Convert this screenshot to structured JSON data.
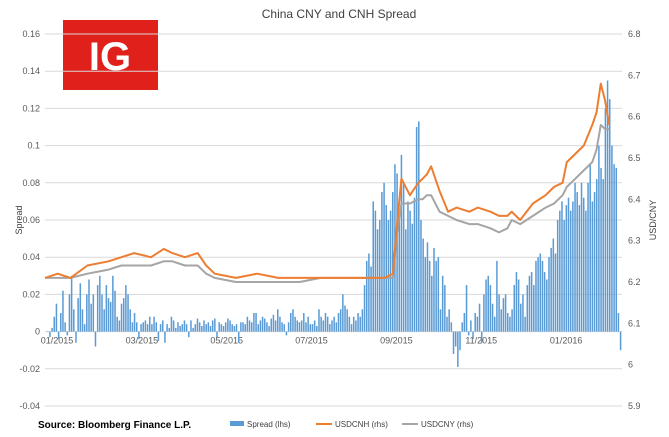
{
  "chart_data": {
    "type": "bar+line",
    "title": "China CNY and CNH Spread",
    "ylabel_left": "Spread",
    "ylabel_right": "USD/CNY",
    "ylim_left": [
      -0.04,
      0.16
    ],
    "ylim_right": [
      5.9,
      6.8
    ],
    "yticks_left": [
      "0.16",
      "0.14",
      "0.12",
      "0.1",
      "0.08",
      "0.06",
      "0.04",
      "0.02",
      "0",
      "-0.02",
      "-0.04"
    ],
    "yticks_right": [
      "6.8",
      "6.7",
      "6.6",
      "6.5",
      "6.4",
      "6.3",
      "6.2",
      "6.1",
      "6",
      "5.9"
    ],
    "xticks": [
      "01/2015",
      "03/2015",
      "05/2015",
      "07/2015",
      "09/2015",
      "11/2015",
      "01/2016"
    ],
    "legend": [
      "Spread (lhs)",
      "USDCNH (rhs)",
      "USDCNY (rhs)"
    ],
    "colors": {
      "spread": "#5b9bd5",
      "usdcnh": "#ed7d31",
      "usdcny": "#a5a5a5",
      "logo": "#e0201b"
    },
    "series": [
      {
        "name": "USDCNH (rhs)",
        "axis": "right",
        "points": [
          [
            0,
            6.21
          ],
          [
            0.3,
            6.22
          ],
          [
            0.6,
            6.21
          ],
          [
            1,
            6.24
          ],
          [
            1.5,
            6.25
          ],
          [
            1.8,
            6.26
          ],
          [
            2.1,
            6.27
          ],
          [
            2.5,
            6.26
          ],
          [
            2.8,
            6.28
          ],
          [
            3,
            6.27
          ],
          [
            3.3,
            6.26
          ],
          [
            3.6,
            6.27
          ],
          [
            3.8,
            6.24
          ],
          [
            4,
            6.22
          ],
          [
            4.5,
            6.21
          ],
          [
            5,
            6.22
          ],
          [
            5.5,
            6.21
          ],
          [
            6,
            6.21
          ],
          [
            6.5,
            6.21
          ],
          [
            7,
            6.21
          ],
          [
            7.5,
            6.21
          ],
          [
            8,
            6.21
          ],
          [
            8.2,
            6.22
          ],
          [
            8.3,
            6.34
          ],
          [
            8.4,
            6.45
          ],
          [
            8.6,
            6.41
          ],
          [
            8.8,
            6.44
          ],
          [
            8.9,
            6.45
          ],
          [
            9,
            6.46
          ],
          [
            9.1,
            6.48
          ],
          [
            9.3,
            6.42
          ],
          [
            9.5,
            6.37
          ],
          [
            9.7,
            6.38
          ],
          [
            10,
            6.37
          ],
          [
            10.2,
            6.38
          ],
          [
            10.5,
            6.37
          ],
          [
            10.7,
            6.36
          ],
          [
            10.9,
            6.36
          ],
          [
            11,
            6.37
          ],
          [
            11.2,
            6.35
          ],
          [
            11.5,
            6.39
          ],
          [
            11.8,
            6.41
          ],
          [
            12,
            6.43
          ],
          [
            12.2,
            6.44
          ],
          [
            12.3,
            6.49
          ],
          [
            12.5,
            6.51
          ],
          [
            12.7,
            6.53
          ],
          [
            12.9,
            6.58
          ],
          [
            13,
            6.61
          ],
          [
            13.1,
            6.68
          ],
          [
            13.2,
            6.64
          ],
          [
            13.3,
            6.58
          ]
        ]
      },
      {
        "name": "USDCNY (rhs)",
        "axis": "right",
        "points": [
          [
            0,
            6.21
          ],
          [
            0.3,
            6.21
          ],
          [
            0.6,
            6.21
          ],
          [
            1,
            6.22
          ],
          [
            1.5,
            6.23
          ],
          [
            1.8,
            6.24
          ],
          [
            2.1,
            6.24
          ],
          [
            2.5,
            6.24
          ],
          [
            2.8,
            6.25
          ],
          [
            3,
            6.25
          ],
          [
            3.3,
            6.24
          ],
          [
            3.6,
            6.24
          ],
          [
            3.8,
            6.22
          ],
          [
            4,
            6.21
          ],
          [
            4.5,
            6.2
          ],
          [
            5,
            6.2
          ],
          [
            5.5,
            6.2
          ],
          [
            6,
            6.2
          ],
          [
            6.5,
            6.21
          ],
          [
            7,
            6.21
          ],
          [
            7.5,
            6.21
          ],
          [
            8,
            6.21
          ],
          [
            8.2,
            6.21
          ],
          [
            8.3,
            6.32
          ],
          [
            8.4,
            6.39
          ],
          [
            8.6,
            6.39
          ],
          [
            8.8,
            6.4
          ],
          [
            8.9,
            6.4
          ],
          [
            9,
            6.41
          ],
          [
            9.1,
            6.41
          ],
          [
            9.3,
            6.37
          ],
          [
            9.5,
            6.36
          ],
          [
            9.7,
            6.35
          ],
          [
            10,
            6.34
          ],
          [
            10.2,
            6.34
          ],
          [
            10.5,
            6.33
          ],
          [
            10.7,
            6.32
          ],
          [
            10.9,
            6.33
          ],
          [
            11,
            6.35
          ],
          [
            11.2,
            6.34
          ],
          [
            11.5,
            6.36
          ],
          [
            11.8,
            6.38
          ],
          [
            12,
            6.39
          ],
          [
            12.2,
            6.41
          ],
          [
            12.3,
            6.43
          ],
          [
            12.5,
            6.45
          ],
          [
            12.7,
            6.47
          ],
          [
            12.9,
            6.49
          ],
          [
            13,
            6.52
          ],
          [
            13.1,
            6.58
          ],
          [
            13.2,
            6.57
          ],
          [
            13.3,
            6.57
          ]
        ]
      },
      {
        "name": "Spread (lhs)",
        "axis": "left",
        "type": "bar",
        "values": [
          0.0,
          -0.003,
          0.002,
          0.008,
          0.015,
          -0.004,
          0.01,
          0.022,
          0.005,
          -0.002,
          0.02,
          0.03,
          0.012,
          -0.006,
          0.018,
          0.026,
          0.012,
          0.004,
          0.02,
          0.028,
          0.015,
          0.02,
          -0.008,
          0.025,
          0.03,
          0.02,
          0.012,
          0.025,
          0.018,
          0.016,
          0.03,
          0.022,
          0.008,
          0.006,
          0.015,
          0.018,
          0.025,
          0.02,
          0.012,
          0.005,
          0.01,
          0.005,
          -0.004,
          0.004,
          0.005,
          0.006,
          0.004,
          0.008,
          0.004,
          0.008,
          0.005,
          -0.005,
          0.004,
          0.006,
          -0.006,
          0.004,
          0.002,
          0.008,
          0.006,
          0.002,
          0.005,
          0.003,
          0.004,
          0.006,
          0.004,
          -0.003,
          0.006,
          0.002,
          0.004,
          0.007,
          0.005,
          0.003,
          0.006,
          0.004,
          0.005,
          0.003,
          0.006,
          0.007,
          -0.003,
          0.005,
          0.004,
          0.003,
          0.005,
          0.007,
          0.006,
          0.004,
          0.003,
          0.004,
          -0.006,
          0.005,
          0.005,
          0.004,
          0.008,
          0.006,
          0.005,
          0.01,
          0.01,
          0.004,
          0.006,
          0.008,
          0.007,
          0.005,
          0.003,
          0.007,
          0.009,
          0.006,
          0.012,
          0.008,
          0.005,
          0.004,
          -0.002,
          0.005,
          0.01,
          0.012,
          0.008,
          0.006,
          0.005,
          0.006,
          0.01,
          0.005,
          0.008,
          0.004,
          0.004,
          0.006,
          0.003,
          0.012,
          0.008,
          0.006,
          0.01,
          0.008,
          0.004,
          0.006,
          0.008,
          0.005,
          0.01,
          0.012,
          0.02,
          0.014,
          0.012,
          0.008,
          0.004,
          0.008,
          0.006,
          0.01,
          0.008,
          0.012,
          0.025,
          0.038,
          0.042,
          0.035,
          0.07,
          0.065,
          0.055,
          0.06,
          0.075,
          0.08,
          0.068,
          0.06,
          0.065,
          0.075,
          0.09,
          0.085,
          0.062,
          0.095,
          0.08,
          0.055,
          0.07,
          0.065,
          0.058,
          0.072,
          0.11,
          0.113,
          0.06,
          0.05,
          0.04,
          0.048,
          0.038,
          0.03,
          0.045,
          0.038,
          0.04,
          0.012,
          0.03,
          0.025,
          0.008,
          0.012,
          0.005,
          -0.012,
          -0.008,
          -0.019,
          -0.01,
          0.005,
          0.01,
          0.025,
          -0.002,
          0.006,
          -0.004,
          0.01,
          0.008,
          0.015,
          -0.006,
          0.02,
          0.028,
          0.03,
          0.025,
          0.015,
          0.008,
          0.038,
          0.02,
          0.012,
          0.018,
          0.02,
          0.01,
          0.008,
          0.012,
          0.025,
          0.032,
          0.028,
          0.015,
          0.02,
          0.008,
          0.025,
          0.03,
          0.032,
          0.025,
          0.038,
          0.04,
          0.042,
          0.038,
          0.032,
          0.028,
          0.04,
          0.045,
          0.05,
          0.042,
          0.06,
          0.065,
          0.07,
          0.06,
          0.068,
          0.072,
          0.065,
          0.07,
          0.08,
          0.075,
          0.068,
          0.08,
          0.072,
          0.065,
          0.08,
          0.09,
          0.07,
          0.075,
          0.082,
          0.1,
          0.088,
          0.082,
          0.12,
          0.135,
          0.125,
          0.1,
          0.09,
          0.088,
          0.01,
          -0.01
        ]
      }
    ],
    "x_unit_note": "x measured in months since 01/2015"
  },
  "legend_labels": {
    "spread": "Spread (lhs)",
    "usdcnh": "USDCNH (rhs)",
    "usdcny": "USDCNY (rhs)"
  },
  "source": "Source: Bloomberg Finance L.P.",
  "logo_text": "IG"
}
